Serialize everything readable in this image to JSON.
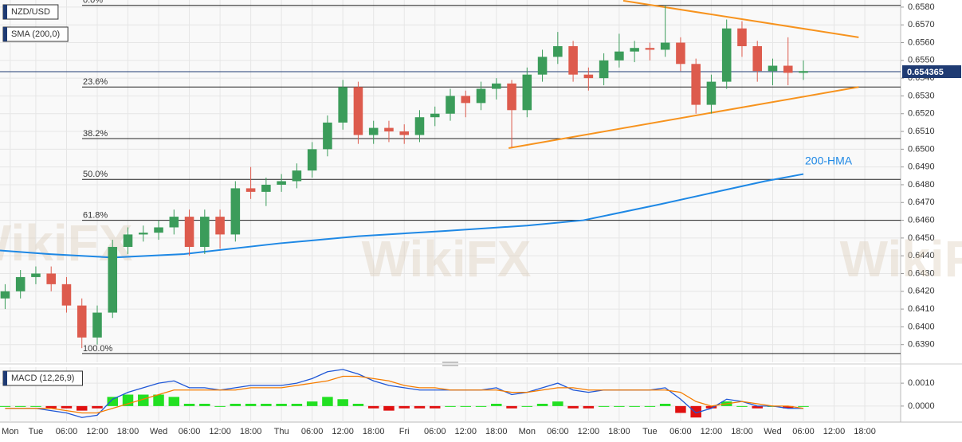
{
  "chart_data": [
    {
      "type": "candlestick",
      "title": "NZD/USD",
      "indicator": "SMA (200,0)",
      "watermark": "WikiFX",
      "up_color": "#3b9c5a",
      "down_color": "#dd5b4d",
      "x": [
        -6,
        -3,
        0,
        3,
        6,
        9,
        12,
        15,
        18,
        21,
        24,
        27,
        30,
        33,
        36,
        39,
        42,
        45,
        48,
        51,
        54,
        57,
        60,
        63,
        66,
        69,
        72,
        75,
        78,
        81,
        84,
        87,
        90,
        93,
        96,
        99,
        102,
        105,
        108,
        111,
        114,
        117,
        120,
        123,
        126,
        129,
        132,
        135,
        138,
        141,
        144,
        147,
        150
      ],
      "open": [
        0.6416,
        0.642,
        0.6428,
        0.643,
        0.6424,
        0.6412,
        0.6394,
        0.6408,
        0.6445,
        0.6452,
        0.6453,
        0.6456,
        0.6462,
        0.6445,
        0.6462,
        0.6452,
        0.6478,
        0.6476,
        0.648,
        0.6482,
        0.6488,
        0.65,
        0.6515,
        0.6535,
        0.6508,
        0.6512,
        0.651,
        0.6508,
        0.6518,
        0.652,
        0.653,
        0.6526,
        0.6534,
        0.6537,
        0.6522,
        0.6542,
        0.6552,
        0.6558,
        0.6542,
        0.654,
        0.655,
        0.6555,
        0.6557,
        0.6556,
        0.656,
        0.6548,
        0.6525,
        0.6538,
        0.6568,
        0.6558,
        0.6544,
        0.6547,
        0.6543
      ],
      "high": [
        0.6424,
        0.6432,
        0.6434,
        0.6434,
        0.6428,
        0.6416,
        0.6412,
        0.6449,
        0.6456,
        0.6457,
        0.646,
        0.6466,
        0.6466,
        0.6466,
        0.6466,
        0.6482,
        0.649,
        0.6484,
        0.6486,
        0.6492,
        0.6504,
        0.6519,
        0.6539,
        0.6538,
        0.6516,
        0.6516,
        0.6514,
        0.6522,
        0.6524,
        0.6534,
        0.6533,
        0.6538,
        0.654,
        0.6539,
        0.6546,
        0.6556,
        0.6566,
        0.6561,
        0.6546,
        0.6554,
        0.6565,
        0.6561,
        0.656,
        0.6581,
        0.6563,
        0.6551,
        0.6542,
        0.6573,
        0.6572,
        0.6561,
        0.6551,
        0.6563,
        0.655
      ],
      "low": [
        0.641,
        0.6416,
        0.6424,
        0.642,
        0.6408,
        0.6388,
        0.639,
        0.6405,
        0.6441,
        0.6448,
        0.6449,
        0.6452,
        0.644,
        0.6441,
        0.6444,
        0.6448,
        0.6472,
        0.6468,
        0.6476,
        0.6478,
        0.6484,
        0.6496,
        0.6511,
        0.6503,
        0.6503,
        0.6504,
        0.6503,
        0.6504,
        0.6513,
        0.6516,
        0.6518,
        0.6522,
        0.6528,
        0.6501,
        0.6518,
        0.6538,
        0.6548,
        0.6538,
        0.6533,
        0.6536,
        0.6546,
        0.6549,
        0.655,
        0.6552,
        0.6544,
        0.652,
        0.652,
        0.6534,
        0.6552,
        0.6538,
        0.6536,
        0.6536,
        0.6539
      ],
      "close": [
        0.642,
        0.6428,
        0.643,
        0.6424,
        0.6412,
        0.6394,
        0.6408,
        0.6445,
        0.6452,
        0.6453,
        0.6456,
        0.6462,
        0.6445,
        0.6462,
        0.6452,
        0.6478,
        0.6476,
        0.648,
        0.6482,
        0.6488,
        0.65,
        0.6515,
        0.6535,
        0.6508,
        0.6512,
        0.651,
        0.6508,
        0.6518,
        0.652,
        0.653,
        0.6526,
        0.6534,
        0.6537,
        0.6522,
        0.6542,
        0.6552,
        0.6558,
        0.6542,
        0.654,
        0.655,
        0.6555,
        0.6557,
        0.6556,
        0.656,
        0.6548,
        0.6525,
        0.6538,
        0.6568,
        0.6558,
        0.6544,
        0.6547,
        0.6543,
        0.6544
      ],
      "xlim": [
        -7,
        169
      ],
      "xticks": [
        {
          "value": -5,
          "label": "Mon"
        },
        {
          "value": 0,
          "label": "Tue"
        },
        {
          "value": 6,
          "label": "06:00"
        },
        {
          "value": 12,
          "label": "12:00"
        },
        {
          "value": 18,
          "label": "18:00"
        },
        {
          "value": 24,
          "label": "Wed"
        },
        {
          "value": 30,
          "label": "06:00"
        },
        {
          "value": 36,
          "label": "12:00"
        },
        {
          "value": 42,
          "label": "18:00"
        },
        {
          "value": 48,
          "label": "Thu"
        },
        {
          "value": 54,
          "label": "06:00"
        },
        {
          "value": 60,
          "label": "12:00"
        },
        {
          "value": 66,
          "label": "18:00"
        },
        {
          "value": 72,
          "label": "Fri"
        },
        {
          "value": 78,
          "label": "06:00"
        },
        {
          "value": 84,
          "label": "12:00"
        },
        {
          "value": 90,
          "label": "18:00"
        },
        {
          "value": 96,
          "label": "Mon"
        },
        {
          "value": 102,
          "label": "06:00"
        },
        {
          "value": 108,
          "label": "12:00"
        },
        {
          "value": 114,
          "label": "18:00"
        },
        {
          "value": 120,
          "label": "Tue"
        },
        {
          "value": 126,
          "label": "06:00"
        },
        {
          "value": 132,
          "label": "12:00"
        },
        {
          "value": 138,
          "label": "18:00"
        },
        {
          "value": 144,
          "label": "Wed"
        },
        {
          "value": 150,
          "label": "06:00"
        },
        {
          "value": 156,
          "label": "12:00"
        },
        {
          "value": 162,
          "label": "18:00"
        }
      ],
      "ylim": [
        0.638,
        0.6584
      ],
      "yticks": [
        {
          "value": 0.639,
          "label": "0.6390"
        },
        {
          "value": 0.64,
          "label": "0.6400"
        },
        {
          "value": 0.641,
          "label": "0.6410"
        },
        {
          "value": 0.642,
          "label": "0.6420"
        },
        {
          "value": 0.643,
          "label": "0.6430"
        },
        {
          "value": 0.644,
          "label": "0.6440"
        },
        {
          "value": 0.645,
          "label": "0.6450"
        },
        {
          "value": 0.646,
          "label": "0.6460"
        },
        {
          "value": 0.647,
          "label": "0.6470"
        },
        {
          "value": 0.648,
          "label": "0.6480"
        },
        {
          "value": 0.649,
          "label": "0.6490"
        },
        {
          "value": 0.65,
          "label": "0.6500"
        },
        {
          "value": 0.651,
          "label": "0.6510"
        },
        {
          "value": 0.652,
          "label": "0.6520"
        },
        {
          "value": 0.653,
          "label": "0.6530"
        },
        {
          "value": 0.654,
          "label": "0.6540"
        },
        {
          "value": 0.655,
          "label": "0.6550"
        },
        {
          "value": 0.656,
          "label": "0.6560"
        },
        {
          "value": 0.657,
          "label": "0.6570"
        },
        {
          "value": 0.658,
          "label": "0.6580"
        }
      ],
      "grid": true,
      "overlays": [
        {
          "name": "200-HMA",
          "color": "#1e88e5",
          "x": [
            -7,
            2.5,
            15,
            29,
            47.6,
            63,
            80,
            96,
            107,
            122,
            133,
            142.5,
            150
          ],
          "values": [
            0.6443,
            0.6441,
            0.6439,
            0.6441,
            0.6447,
            0.6451,
            0.6454,
            0.6457,
            0.646,
            0.6469,
            0.6476,
            0.6482,
            0.6486
          ]
        }
      ],
      "levels": [
        {
          "label": "0.0%",
          "value": 0.6581
        },
        {
          "label": "23.6%",
          "value": 0.6535
        },
        {
          "label": "38.2%",
          "value": 0.6506
        },
        {
          "label": "50.0%",
          "value": 0.6483
        },
        {
          "label": "61.8%",
          "value": 0.646
        },
        {
          "label": "100.0%",
          "value": 0.6385
        }
      ],
      "level_color": "#222222",
      "trendlines": [
        {
          "color": "#f7931e",
          "x": [
            114.8,
            160.8
          ],
          "values": [
            0.65836,
            0.6563
          ]
        },
        {
          "color": "#f7931e",
          "x": [
            92.4,
            160.8
          ],
          "values": [
            0.65006,
            0.6535
          ]
        }
      ],
      "last_price": 0.654365,
      "last_price_color": "#1f3b73"
    },
    {
      "type": "macd",
      "title": "MACD (12,26,9)",
      "series": [
        {
          "color": "#1e56d6",
          "values": [
            -0.0001,
            -0.0001,
            -0.0001,
            -0.0002,
            -0.0003,
            -0.0005,
            -0.0004,
            0.0003,
            0.0006,
            0.0008,
            0.001,
            0.0011,
            0.0008,
            0.0008,
            0.0007,
            0.0008,
            0.0009,
            0.0009,
            0.0009,
            0.001,
            0.0012,
            0.0015,
            0.0016,
            0.0014,
            0.0011,
            0.0009,
            0.0008,
            0.0007,
            0.0007,
            0.0007,
            0.0007,
            0.0007,
            0.0008,
            0.0005,
            0.0006,
            0.0008,
            0.001,
            0.0007,
            0.0006,
            0.0007,
            0.0007,
            0.0007,
            0.0007,
            0.0008,
            0.0003,
            -0.0003,
            -0.0001,
            0.0003,
            0.0002,
            0,
            0,
            -0.0001,
            -0.0001
          ]
        },
        {
          "color": "#f57c00",
          "values": [
            -0.0001,
            -0.0001,
            -0.0001,
            -0.0001,
            -0.0002,
            -0.0003,
            -0.0003,
            -0.0001,
            0.0001,
            0.0003,
            0.0005,
            0.0007,
            0.0007,
            0.0007,
            0.0007,
            0.0007,
            0.0008,
            0.0008,
            0.0008,
            0.0009,
            0.001,
            0.0011,
            0.0013,
            0.0013,
            0.0012,
            0.0011,
            0.0009,
            0.0008,
            0.0008,
            0.0007,
            0.0007,
            0.0007,
            0.0007,
            0.0006,
            0.0006,
            0.0007,
            0.0008,
            0.0008,
            0.0007,
            0.0007,
            0.0007,
            0.0007,
            0.0007,
            0.0007,
            0.0006,
            0.0002,
            0,
            0.0001,
            0.0002,
            0.0001,
            0,
            0,
            -0.0001
          ]
        }
      ],
      "histogram": [
        0,
        0,
        0,
        -0.0001,
        -0.0001,
        -0.0002,
        -0.0001,
        0.0004,
        0.0005,
        0.0005,
        0.0005,
        0.0004,
        0.0001,
        0.0001,
        0,
        0.0001,
        0.0001,
        0.0001,
        0.0001,
        0.0001,
        0.0002,
        0.0004,
        0.0003,
        0.0001,
        -0.0001,
        -0.0002,
        -0.0001,
        -0.0001,
        -0.0001,
        0,
        0,
        0,
        0.0001,
        -0.0001,
        0,
        0.0001,
        0.0002,
        -0.0001,
        -0.0001,
        0,
        0,
        0,
        0,
        0.0001,
        -0.0003,
        -0.0005,
        -0.0001,
        0.0002,
        0,
        -0.0001,
        0,
        -0.0001,
        0
      ],
      "pos_color": "#22e022",
      "neg_color": "#e01010",
      "ylim": [
        -0.0007,
        0.0017
      ],
      "yticks": [
        {
          "value": 0,
          "label": "0.0000"
        },
        {
          "value": 0.001,
          "label": "0.0010"
        }
      ]
    }
  ]
}
